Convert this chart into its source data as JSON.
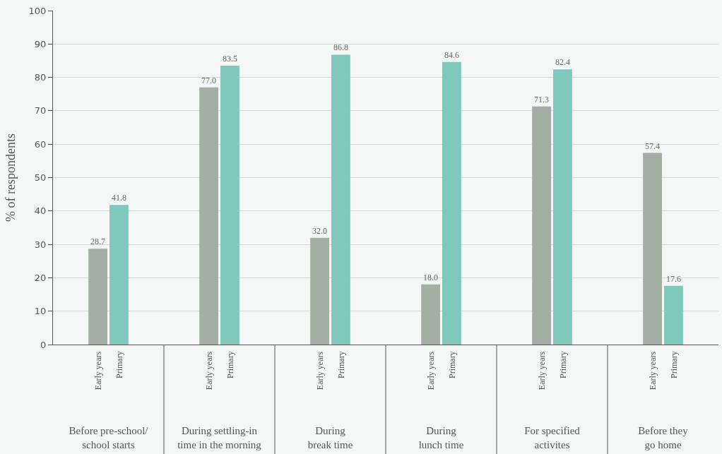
{
  "chart_data": {
    "type": "bar",
    "ylabel": "% of respondents",
    "categories": [
      "Before pre-school/\nschool starts",
      "During settling-in\ntime in the morning",
      "During\nbreak time",
      "During\nlunch time",
      "For specified\nactivites",
      "Before they\ngo home"
    ],
    "series": [
      {
        "name": "Early years",
        "color": "#a3afa3",
        "values": [
          28.7,
          77.0,
          32.0,
          18.0,
          71.3,
          57.4
        ],
        "value_labels": [
          "28.7",
          "77.0",
          "32.0",
          "18.0",
          "71.3",
          "57.4"
        ]
      },
      {
        "name": "Primary",
        "color": "#80c8bc",
        "values": [
          41.8,
          83.5,
          86.8,
          84.6,
          82.4,
          17.6
        ],
        "value_labels": [
          "41.8",
          "83.5",
          "86.8",
          "84.6",
          "82.4",
          "17.6"
        ]
      }
    ],
    "ylim": [
      0,
      100
    ],
    "yticks": [
      0,
      10,
      20,
      30,
      40,
      50,
      60,
      70,
      80,
      90,
      100
    ],
    "grid": "y",
    "legend": false
  }
}
